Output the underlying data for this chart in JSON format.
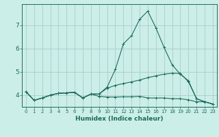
{
  "title": "",
  "xlabel": "Humidex (Indice chaleur)",
  "background_color": "#cceee8",
  "grid_color": "#aacccc",
  "line_color": "#1a6b5a",
  "x_values": [
    0,
    1,
    2,
    3,
    4,
    5,
    6,
    7,
    8,
    9,
    10,
    11,
    12,
    13,
    14,
    15,
    16,
    17,
    18,
    19,
    20,
    21,
    22,
    23
  ],
  "line1_y": [
    4.15,
    3.78,
    3.88,
    4.0,
    4.08,
    4.1,
    4.12,
    3.88,
    4.05,
    4.05,
    4.35,
    5.1,
    6.2,
    6.55,
    7.25,
    7.6,
    6.88,
    6.05,
    5.3,
    4.9,
    4.62,
    3.85,
    3.72,
    3.62
  ],
  "line2_y": [
    4.15,
    3.78,
    3.88,
    4.0,
    4.08,
    4.1,
    4.12,
    3.88,
    4.05,
    4.05,
    4.3,
    4.42,
    4.5,
    4.57,
    4.65,
    4.75,
    4.83,
    4.9,
    4.94,
    4.93,
    4.58,
    3.85,
    3.72,
    3.62
  ],
  "line3_y": [
    4.15,
    3.78,
    3.88,
    4.0,
    4.08,
    4.1,
    4.12,
    3.88,
    4.05,
    3.95,
    3.92,
    3.92,
    3.93,
    3.93,
    3.95,
    3.88,
    3.88,
    3.88,
    3.85,
    3.85,
    3.8,
    3.72,
    3.72,
    3.62
  ],
  "ylim": [
    3.5,
    7.9
  ],
  "yticks": [
    4,
    5,
    6,
    7
  ],
  "xlim": [
    -0.5,
    23.5
  ],
  "xticks": [
    0,
    1,
    2,
    3,
    4,
    5,
    6,
    7,
    8,
    9,
    10,
    11,
    12,
    13,
    14,
    15,
    16,
    17,
    18,
    19,
    20,
    21,
    22,
    23
  ]
}
